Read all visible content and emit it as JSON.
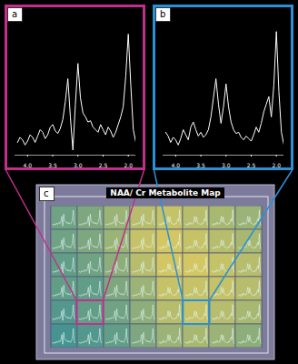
{
  "chart_data": [
    {
      "type": "line",
      "title": "a",
      "color": "#ffffff",
      "tick_labels": "x",
      "x": [
        4.2,
        4.15,
        4.1,
        4.05,
        4.0,
        3.95,
        3.9,
        3.85,
        3.8,
        3.75,
        3.7,
        3.65,
        3.6,
        3.55,
        3.5,
        3.45,
        3.4,
        3.35,
        3.3,
        3.25,
        3.2,
        3.15,
        3.1,
        3.05,
        3.0,
        2.95,
        2.9,
        2.85,
        2.8,
        2.75,
        2.7,
        2.65,
        2.6,
        2.55,
        2.5,
        2.45,
        2.4,
        2.35,
        2.3,
        2.25,
        2.2,
        2.15,
        2.1,
        2.05,
        2.0,
        1.95,
        1.9,
        1.85
      ],
      "values": [
        10,
        14,
        12,
        8,
        11,
        16,
        14,
        10,
        15,
        20,
        18,
        13,
        16,
        22,
        24,
        19,
        17,
        21,
        28,
        42,
        60,
        30,
        4,
        40,
        72,
        45,
        33,
        30,
        26,
        27,
        22,
        20,
        18,
        24,
        20,
        16,
        22,
        19,
        14,
        18,
        24,
        30,
        38,
        62,
        95,
        55,
        20,
        10
      ],
      "xlim": [
        4.25,
        1.85
      ],
      "ylim": [
        0,
        100
      ],
      "xticks": [
        {
          "value": 4,
          "label": "4.0"
        },
        3.5,
        {
          "value": 3,
          "label": "3.0"
        },
        2.5,
        {
          "value": 2,
          "label": "2.0"
        }
      ],
      "border_color": "#c2308c"
    },
    {
      "type": "line",
      "title": "b",
      "color": "#ffffff",
      "tick_labels": "x",
      "x": [
        4.2,
        4.15,
        4.1,
        4.05,
        4.0,
        3.95,
        3.9,
        3.85,
        3.8,
        3.75,
        3.7,
        3.65,
        3.6,
        3.55,
        3.5,
        3.45,
        3.4,
        3.35,
        3.3,
        3.25,
        3.2,
        3.15,
        3.1,
        3.05,
        3.0,
        2.95,
        2.9,
        2.85,
        2.8,
        2.75,
        2.7,
        2.65,
        2.6,
        2.55,
        2.5,
        2.45,
        2.4,
        2.35,
        2.3,
        2.25,
        2.2,
        2.15,
        2.1,
        2.05,
        2.0,
        1.95,
        1.9,
        1.85
      ],
      "values": [
        18,
        15,
        10,
        14,
        12,
        8,
        13,
        20,
        16,
        12,
        22,
        26,
        20,
        15,
        18,
        14,
        16,
        20,
        30,
        45,
        60,
        40,
        25,
        38,
        56,
        38,
        26,
        20,
        17,
        18,
        14,
        12,
        15,
        13,
        11,
        16,
        22,
        18,
        25,
        34,
        40,
        46,
        30,
        55,
        97,
        50,
        18,
        8
      ],
      "xlim": [
        4.25,
        1.85
      ],
      "ylim": [
        0,
        100
      ],
      "xticks": [
        {
          "value": 4,
          "label": "4.0"
        },
        3.5,
        {
          "value": 3,
          "label": "3.0"
        },
        2.5,
        {
          "value": 2,
          "label": "2.0"
        }
      ],
      "border_color": "#2a90d8"
    }
  ],
  "map": {
    "label": "c",
    "title": "NAA/ Cr Metabolite Map",
    "type": "heatmap",
    "cells": [
      [
        1.2,
        1.3,
        1.5,
        1.7,
        1.8,
        1.7,
        1.6,
        1.5
      ],
      [
        1.2,
        1.3,
        1.5,
        1.8,
        1.9,
        1.8,
        1.7,
        1.6
      ],
      [
        1.1,
        1.2,
        1.4,
        1.7,
        1.9,
        1.9,
        1.8,
        1.7
      ],
      [
        1.1,
        1.1,
        1.3,
        1.5,
        1.8,
        1.8,
        1.8,
        1.7
      ],
      [
        1.0,
        1.1,
        1.2,
        1.4,
        1.7,
        1.8,
        1.7,
        1.6
      ],
      [
        0.9,
        1.0,
        1.1,
        1.3,
        1.5,
        1.6,
        1.5,
        1.4
      ]
    ],
    "selected_voxels": [
      {
        "panel": "a",
        "row": 4,
        "col": 1
      },
      {
        "panel": "b",
        "row": 4,
        "col": 5
      }
    ]
  }
}
